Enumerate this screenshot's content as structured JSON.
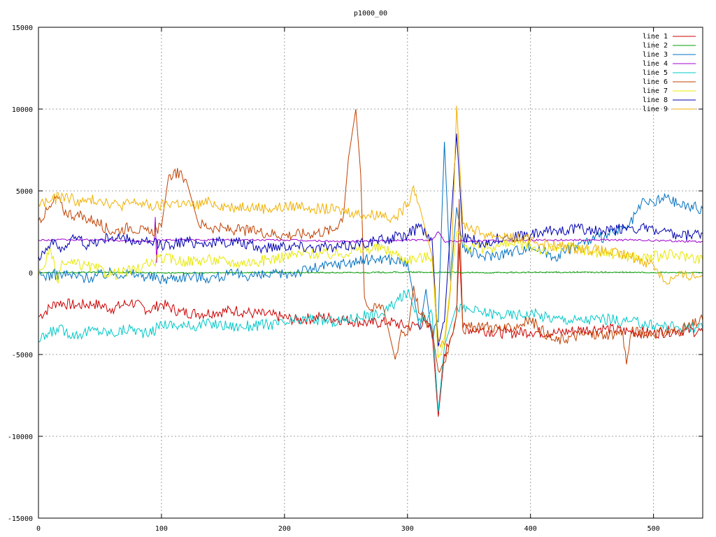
{
  "chart_data": {
    "type": "line",
    "title": "p1000_00",
    "xlim": [
      0,
      540
    ],
    "ylim": [
      -15000,
      15000
    ],
    "x_ticks": [
      0,
      100,
      200,
      300,
      400,
      500
    ],
    "y_ticks": [
      -15000,
      -10000,
      -5000,
      0,
      5000,
      10000,
      15000
    ],
    "grid": true,
    "legend_position": "top-right",
    "series": [
      {
        "name": "line 1",
        "color": "#cc0000",
        "points": [
          [
            0,
            -2700
          ],
          [
            15,
            -1800
          ],
          [
            30,
            -2000
          ],
          [
            45,
            -1900
          ],
          [
            60,
            -2200
          ],
          [
            75,
            -1800
          ],
          [
            90,
            -2300
          ],
          [
            100,
            -1900
          ],
          [
            115,
            -2400
          ],
          [
            130,
            -2500
          ],
          [
            145,
            -2400
          ],
          [
            160,
            -2300
          ],
          [
            175,
            -2500
          ],
          [
            190,
            -2600
          ],
          [
            210,
            -2900
          ],
          [
            230,
            -2700
          ],
          [
            250,
            -2900
          ],
          [
            270,
            -3100
          ],
          [
            285,
            -3000
          ],
          [
            300,
            -3300
          ],
          [
            315,
            -3100
          ],
          [
            320,
            -3600
          ],
          [
            325,
            -8800
          ],
          [
            330,
            -5000
          ],
          [
            335,
            -4000
          ],
          [
            340,
            -2500
          ],
          [
            342,
            1800
          ],
          [
            345,
            -3400
          ],
          [
            360,
            -3500
          ],
          [
            380,
            -3700
          ],
          [
            400,
            -3600
          ],
          [
            420,
            -3700
          ],
          [
            440,
            -3500
          ],
          [
            460,
            -3400
          ],
          [
            480,
            -3600
          ],
          [
            500,
            -3700
          ],
          [
            520,
            -3500
          ],
          [
            540,
            -3600
          ]
        ]
      },
      {
        "name": "line 2",
        "color": "#00a000",
        "points": [
          [
            0,
            0
          ],
          [
            60,
            30
          ],
          [
            120,
            -20
          ],
          [
            180,
            20
          ],
          [
            240,
            0
          ],
          [
            300,
            30
          ],
          [
            320,
            20
          ],
          [
            360,
            0
          ],
          [
            420,
            30
          ],
          [
            480,
            20
          ],
          [
            540,
            0
          ]
        ]
      },
      {
        "name": "line 3",
        "color": "#0070c0",
        "points": [
          [
            0,
            -200
          ],
          [
            20,
            -100
          ],
          [
            40,
            -300
          ],
          [
            60,
            0
          ],
          [
            80,
            -100
          ],
          [
            100,
            -400
          ],
          [
            120,
            -200
          ],
          [
            140,
            -300
          ],
          [
            160,
            -100
          ],
          [
            180,
            -200
          ],
          [
            200,
            -100
          ],
          [
            220,
            200
          ],
          [
            240,
            500
          ],
          [
            260,
            700
          ],
          [
            280,
            900
          ],
          [
            300,
            600
          ],
          [
            310,
            -3500
          ],
          [
            315,
            -1000
          ],
          [
            320,
            -4000
          ],
          [
            325,
            -3000
          ],
          [
            330,
            8000
          ],
          [
            335,
            -500
          ],
          [
            340,
            4000
          ],
          [
            345,
            1500
          ],
          [
            360,
            1000
          ],
          [
            380,
            1200
          ],
          [
            400,
            1600
          ],
          [
            420,
            1000
          ],
          [
            440,
            1800
          ],
          [
            460,
            2200
          ],
          [
            480,
            2800
          ],
          [
            490,
            4200
          ],
          [
            500,
            4300
          ],
          [
            510,
            4600
          ],
          [
            520,
            4200
          ],
          [
            540,
            3900
          ]
        ]
      },
      {
        "name": "line 4",
        "color": "#a000d0",
        "points": [
          [
            0,
            2000
          ],
          [
            50,
            2000
          ],
          [
            94,
            1900
          ],
          [
            95,
            3400
          ],
          [
            96,
            600
          ],
          [
            97,
            2000
          ],
          [
            150,
            2000
          ],
          [
            200,
            2000
          ],
          [
            250,
            1900
          ],
          [
            300,
            2000
          ],
          [
            320,
            2000
          ],
          [
            325,
            2500
          ],
          [
            330,
            1900
          ],
          [
            400,
            2000
          ],
          [
            480,
            2000
          ],
          [
            540,
            1900
          ]
        ]
      },
      {
        "name": "line 5",
        "color": "#00c8c8",
        "points": [
          [
            0,
            -4200
          ],
          [
            15,
            -3400
          ],
          [
            30,
            -3800
          ],
          [
            45,
            -3500
          ],
          [
            60,
            -3700
          ],
          [
            75,
            -3400
          ],
          [
            90,
            -3800
          ],
          [
            100,
            -3100
          ],
          [
            120,
            -3300
          ],
          [
            140,
            -3100
          ],
          [
            160,
            -3300
          ],
          [
            180,
            -3200
          ],
          [
            200,
            -3100
          ],
          [
            220,
            -2800
          ],
          [
            240,
            -3000
          ],
          [
            260,
            -2700
          ],
          [
            280,
            -2500
          ],
          [
            300,
            -1200
          ],
          [
            310,
            -2800
          ],
          [
            320,
            -2500
          ],
          [
            325,
            -8500
          ],
          [
            330,
            -4500
          ],
          [
            340,
            -2000
          ],
          [
            345,
            -2200
          ],
          [
            360,
            -2400
          ],
          [
            380,
            -2600
          ],
          [
            400,
            -2500
          ],
          [
            420,
            -2800
          ],
          [
            440,
            -2900
          ],
          [
            460,
            -2800
          ],
          [
            480,
            -3000
          ],
          [
            500,
            -3200
          ],
          [
            520,
            -3300
          ],
          [
            540,
            -3400
          ]
        ]
      },
      {
        "name": "line 6",
        "color": "#c04000",
        "points": [
          [
            0,
            3200
          ],
          [
            10,
            4000
          ],
          [
            15,
            4700
          ],
          [
            20,
            3800
          ],
          [
            30,
            3500
          ],
          [
            45,
            3200
          ],
          [
            60,
            2500
          ],
          [
            75,
            2800
          ],
          [
            90,
            2400
          ],
          [
            100,
            2800
          ],
          [
            105,
            5500
          ],
          [
            110,
            6200
          ],
          [
            120,
            5700
          ],
          [
            130,
            3000
          ],
          [
            145,
            2700
          ],
          [
            160,
            2600
          ],
          [
            180,
            2500
          ],
          [
            200,
            2300
          ],
          [
            220,
            2400
          ],
          [
            240,
            2600
          ],
          [
            248,
            3500
          ],
          [
            252,
            7000
          ],
          [
            258,
            10000
          ],
          [
            262,
            6000
          ],
          [
            265,
            -1500
          ],
          [
            270,
            -2300
          ],
          [
            280,
            -2000
          ],
          [
            290,
            -5300
          ],
          [
            295,
            -3500
          ],
          [
            300,
            -3800
          ],
          [
            305,
            -800
          ],
          [
            310,
            -2500
          ],
          [
            315,
            -3000
          ],
          [
            320,
            -3500
          ],
          [
            325,
            -6000
          ],
          [
            330,
            -5500
          ],
          [
            335,
            -4000
          ],
          [
            340,
            -2500
          ],
          [
            342,
            4500
          ],
          [
            345,
            -3500
          ],
          [
            360,
            -3200
          ],
          [
            380,
            -3500
          ],
          [
            400,
            -2900
          ],
          [
            420,
            -4200
          ],
          [
            440,
            -3800
          ],
          [
            460,
            -3800
          ],
          [
            475,
            -3600
          ],
          [
            478,
            -5600
          ],
          [
            482,
            -3600
          ],
          [
            500,
            -3700
          ],
          [
            520,
            -3600
          ],
          [
            540,
            -2900
          ]
        ]
      },
      {
        "name": "line 7",
        "color": "#e8e800",
        "points": [
          [
            0,
            -200
          ],
          [
            10,
            1400
          ],
          [
            15,
            -500
          ],
          [
            20,
            600
          ],
          [
            40,
            400
          ],
          [
            60,
            -100
          ],
          [
            80,
            200
          ],
          [
            100,
            900
          ],
          [
            120,
            700
          ],
          [
            140,
            800
          ],
          [
            160,
            600
          ],
          [
            180,
            700
          ],
          [
            200,
            1000
          ],
          [
            220,
            1200
          ],
          [
            240,
            1100
          ],
          [
            260,
            1400
          ],
          [
            280,
            1500
          ],
          [
            300,
            800
          ],
          [
            320,
            1000
          ],
          [
            325,
            -5200
          ],
          [
            330,
            -4000
          ],
          [
            340,
            2500
          ],
          [
            350,
            1500
          ],
          [
            370,
            1600
          ],
          [
            390,
            1800
          ],
          [
            410,
            1400
          ],
          [
            430,
            1600
          ],
          [
            450,
            1300
          ],
          [
            470,
            1100
          ],
          [
            490,
            900
          ],
          [
            510,
            1100
          ],
          [
            530,
            1000
          ],
          [
            540,
            800
          ]
        ]
      },
      {
        "name": "line 8",
        "color": "#0000b0",
        "points": [
          [
            0,
            1000
          ],
          [
            10,
            1800
          ],
          [
            20,
            1500
          ],
          [
            30,
            2200
          ],
          [
            40,
            1700
          ],
          [
            60,
            2200
          ],
          [
            80,
            1900
          ],
          [
            100,
            1700
          ],
          [
            120,
            1900
          ],
          [
            140,
            1800
          ],
          [
            160,
            1900
          ],
          [
            180,
            1500
          ],
          [
            200,
            1700
          ],
          [
            220,
            1600
          ],
          [
            240,
            1500
          ],
          [
            260,
            1800
          ],
          [
            280,
            2000
          ],
          [
            300,
            2300
          ],
          [
            310,
            2800
          ],
          [
            320,
            2000
          ],
          [
            325,
            -4500
          ],
          [
            330,
            -3000
          ],
          [
            340,
            8500
          ],
          [
            345,
            2200
          ],
          [
            360,
            1800
          ],
          [
            380,
            2200
          ],
          [
            400,
            2300
          ],
          [
            420,
            2600
          ],
          [
            440,
            2700
          ],
          [
            460,
            2500
          ],
          [
            480,
            2800
          ],
          [
            500,
            2600
          ],
          [
            520,
            2200
          ],
          [
            540,
            2400
          ]
        ]
      },
      {
        "name": "line 9",
        "color": "#f0b000",
        "points": [
          [
            0,
            4200
          ],
          [
            10,
            4400
          ],
          [
            20,
            4700
          ],
          [
            35,
            4300
          ],
          [
            50,
            4500
          ],
          [
            65,
            4100
          ],
          [
            80,
            4300
          ],
          [
            95,
            4000
          ],
          [
            110,
            4300
          ],
          [
            125,
            4100
          ],
          [
            140,
            4300
          ],
          [
            155,
            4000
          ],
          [
            170,
            4100
          ],
          [
            185,
            3900
          ],
          [
            200,
            4000
          ],
          [
            215,
            4100
          ],
          [
            230,
            3900
          ],
          [
            245,
            3800
          ],
          [
            255,
            3700
          ],
          [
            265,
            3500
          ],
          [
            280,
            3600
          ],
          [
            290,
            3300
          ],
          [
            300,
            4200
          ],
          [
            305,
            5300
          ],
          [
            310,
            4000
          ],
          [
            320,
            1000
          ],
          [
            325,
            -4000
          ],
          [
            330,
            -4500
          ],
          [
            335,
            -1000
          ],
          [
            340,
            10200
          ],
          [
            345,
            3000
          ],
          [
            360,
            2400
          ],
          [
            380,
            2200
          ],
          [
            400,
            2000
          ],
          [
            420,
            1600
          ],
          [
            440,
            1500
          ],
          [
            460,
            1300
          ],
          [
            480,
            1000
          ],
          [
            500,
            500
          ],
          [
            510,
            -600
          ],
          [
            520,
            -200
          ],
          [
            540,
            -200
          ]
        ]
      }
    ]
  }
}
